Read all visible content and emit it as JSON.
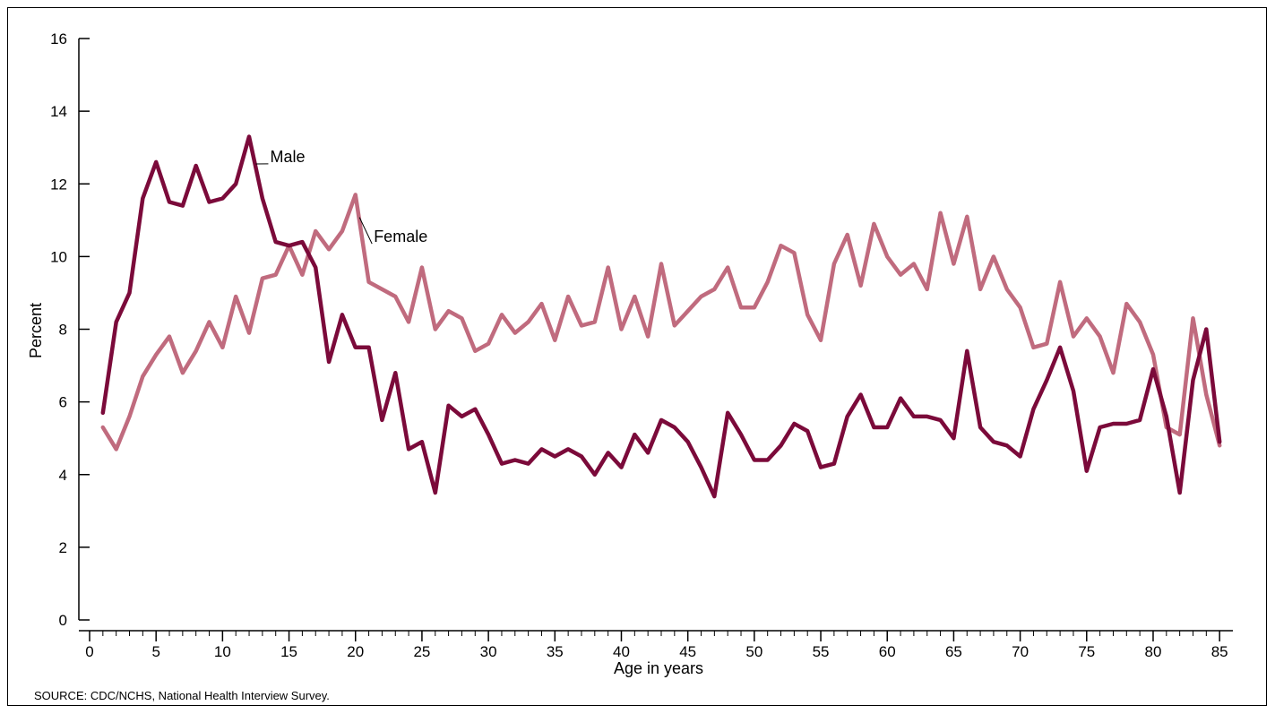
{
  "chart_data": {
    "type": "line",
    "xlabel": "Age in years",
    "ylabel": "Percent",
    "xlim": [
      0,
      86
    ],
    "ylim": [
      0,
      16
    ],
    "x_ticks": [
      0,
      5,
      10,
      15,
      20,
      25,
      30,
      35,
      40,
      45,
      50,
      55,
      60,
      65,
      70,
      75,
      80,
      85
    ],
    "y_ticks": [
      0,
      2,
      4,
      6,
      8,
      10,
      12,
      14,
      16
    ],
    "grid": false,
    "legend": "inline labels",
    "x": [
      1,
      2,
      3,
      4,
      5,
      6,
      7,
      8,
      9,
      10,
      11,
      12,
      13,
      14,
      15,
      16,
      17,
      18,
      19,
      20,
      21,
      22,
      23,
      24,
      25,
      26,
      27,
      28,
      29,
      30,
      31,
      32,
      33,
      34,
      35,
      36,
      37,
      38,
      39,
      40,
      41,
      42,
      43,
      44,
      45,
      46,
      47,
      48,
      49,
      50,
      51,
      52,
      53,
      54,
      55,
      56,
      57,
      58,
      59,
      60,
      61,
      62,
      63,
      64,
      65,
      66,
      67,
      68,
      69,
      70,
      71,
      72,
      73,
      74,
      75,
      76,
      77,
      78,
      79,
      80,
      81,
      82,
      83,
      84,
      85
    ],
    "series": [
      {
        "name": "Male",
        "color": "#7b0a3a",
        "values": [
          5.7,
          8.2,
          9.0,
          11.6,
          12.6,
          11.5,
          11.4,
          12.5,
          11.5,
          11.6,
          12.0,
          13.3,
          11.6,
          10.4,
          10.3,
          10.4,
          9.7,
          7.1,
          8.4,
          7.5,
          7.5,
          5.5,
          6.8,
          4.7,
          4.9,
          3.5,
          5.9,
          5.6,
          5.8,
          5.1,
          4.3,
          4.4,
          4.3,
          4.7,
          4.5,
          4.7,
          4.5,
          4.0,
          4.6,
          4.2,
          5.1,
          4.6,
          5.5,
          5.3,
          4.9,
          4.2,
          3.4,
          5.7,
          5.1,
          4.4,
          4.4,
          4.8,
          5.4,
          5.2,
          4.2,
          4.3,
          5.6,
          6.2,
          5.3,
          5.3,
          6.1,
          5.6,
          5.6,
          5.5,
          5.0,
          7.4,
          5.3,
          4.9,
          4.8,
          4.5,
          5.8,
          6.6,
          7.5,
          6.3,
          4.1,
          5.3,
          5.4,
          5.4,
          5.5,
          6.9,
          5.6,
          3.5,
          6.6,
          8.0,
          4.9
        ]
      },
      {
        "name": "Female",
        "color": "#c06b7e",
        "values": [
          5.3,
          4.7,
          5.6,
          6.7,
          7.3,
          7.8,
          6.8,
          7.4,
          8.2,
          7.5,
          8.9,
          7.9,
          9.4,
          9.5,
          10.3,
          9.5,
          10.7,
          10.2,
          10.7,
          11.7,
          9.3,
          9.1,
          8.9,
          8.2,
          9.7,
          8.0,
          8.5,
          8.3,
          7.4,
          7.6,
          8.4,
          7.9,
          8.2,
          8.7,
          7.7,
          8.9,
          8.1,
          8.2,
          9.7,
          8.0,
          8.9,
          7.8,
          9.8,
          8.1,
          8.5,
          8.9,
          9.1,
          9.7,
          8.6,
          8.6,
          9.3,
          10.3,
          10.1,
          8.4,
          7.7,
          9.8,
          10.6,
          9.2,
          10.9,
          10.0,
          9.5,
          9.8,
          9.1,
          11.2,
          9.8,
          11.1,
          9.1,
          10.0,
          9.1,
          8.6,
          7.5,
          7.6,
          9.3,
          7.8,
          8.3,
          7.8,
          6.8,
          8.7,
          8.2,
          7.3,
          5.3,
          5.1,
          8.3,
          6.2,
          4.8
        ]
      }
    ],
    "annotations": [
      {
        "series": "Male",
        "text": "Male",
        "x": 12.5,
        "y": 12.6
      },
      {
        "series": "Female",
        "text": "Female",
        "x": 20.3,
        "y": 10.4
      }
    ],
    "source": "SOURCE: CDC/NCHS, National Health Interview Survey."
  }
}
